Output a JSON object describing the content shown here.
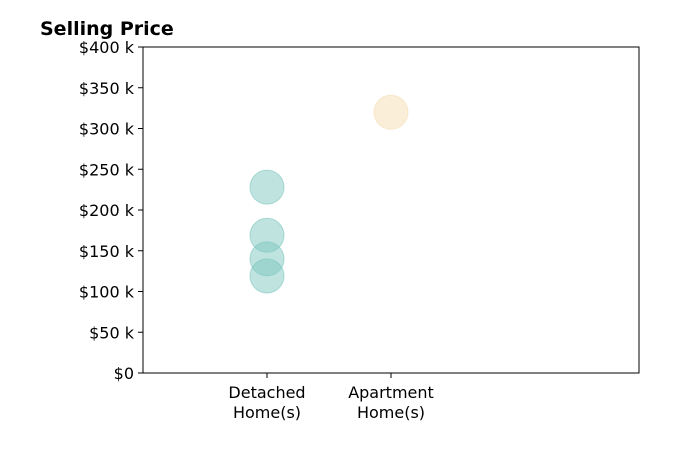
{
  "chart_data": {
    "type": "scatter",
    "title": "Selling Price",
    "xlabel": "",
    "ylabel": "",
    "categories": [
      "Detached\nHome(s)",
      "Apartment\nHome(s)"
    ],
    "x_range_slots": [
      -1,
      3
    ],
    "ylim": [
      0,
      400
    ],
    "y_ticks": [
      0,
      50,
      100,
      150,
      200,
      250,
      300,
      350,
      400
    ],
    "y_tick_labels": [
      "$0",
      "$50 k",
      "$100 k",
      "$150 k",
      "$200 k",
      "$250 k",
      "$300 k",
      "$350 k",
      "$400 k"
    ],
    "grid": false,
    "series": [
      {
        "category": "Detached\nHome(s)",
        "values": [
          228,
          169,
          140,
          119
        ],
        "color": "#7fc7c0"
      },
      {
        "category": "Apartment\nHome(s)",
        "values": [
          320
        ],
        "color": "#f5deb3"
      }
    ]
  }
}
